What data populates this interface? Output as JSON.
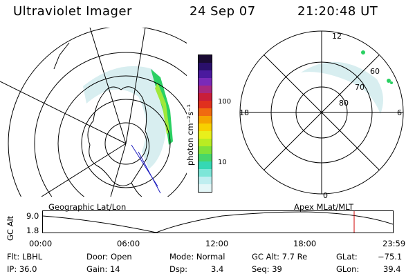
{
  "header": {
    "instrument": "Ultraviolet Imager",
    "date": "24 Sep 07",
    "time": "21:20:48 UT"
  },
  "colorbar": {
    "unit_label": "photon cm⁻²s⁻¹",
    "ticks": [
      "100",
      "10"
    ],
    "colors": [
      "#1a0b33",
      "#2a0f6b",
      "#4a1a9e",
      "#7a2ab8",
      "#a8287f",
      "#c91e3a",
      "#e0301e",
      "#f06a10",
      "#f5a400",
      "#f7d000",
      "#e8ef1c",
      "#b9ec22",
      "#7fe23a",
      "#47d66a",
      "#35d8b4",
      "#7de6d8",
      "#bfeef0",
      "#e4f7f8"
    ]
  },
  "polar_plot": {
    "hour_labels": [
      "12",
      "18",
      "6",
      "0"
    ],
    "lat_labels": [
      "60",
      "70",
      "80"
    ]
  },
  "timeline": {
    "left_title": "Geographic Lat/Lon",
    "right_title": "Apex MLat/MLT",
    "yaxis_label": "GC Alt",
    "ytick_top": "9.0",
    "ytick_bottom": "1.8",
    "xticks": [
      "00:00",
      "06:00",
      "12:00",
      "18:00",
      "23:59"
    ],
    "marker_color": "#d00000"
  },
  "status": {
    "flt": "Flt: LBHL",
    "ip": "IP: 36.0",
    "door": "Door: Open",
    "gain": "Gain: 14",
    "mode": "Mode: Normal",
    "dsp_label": "Dsp:",
    "dsp_value": "3.4",
    "gcalt": "GC Alt: 7.7 Re",
    "seq": "Seq: 39",
    "glat_label": "GLat:",
    "glat_value": "−75.1",
    "glon_label": "GLon:",
    "glon_value": "39.4"
  }
}
